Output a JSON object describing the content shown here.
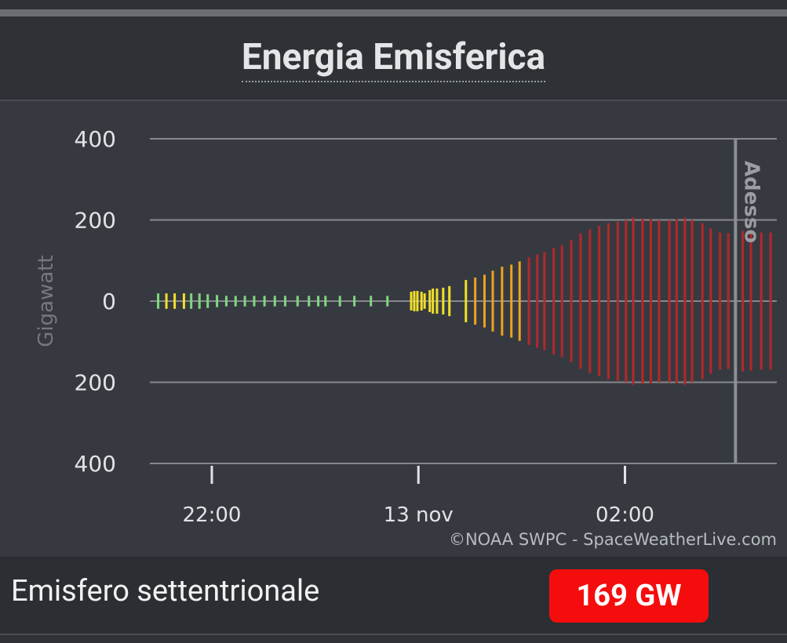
{
  "header": {
    "title": "Energia Emisferica"
  },
  "chart_data": {
    "type": "symmetric_bar",
    "y_label": "Gigawatt",
    "x": [
      -2.52,
      -2.44,
      -2.36,
      -2.27,
      -2.2,
      -2.12,
      -2.04,
      -1.95,
      -1.86,
      -1.77,
      -1.68,
      -1.59,
      -1.49,
      -1.39,
      -1.29,
      -1.17,
      -1.06,
      -0.97,
      -0.9,
      -0.76,
      -0.62,
      -0.46,
      -0.3,
      -0.07,
      -0.04,
      -0.01,
      0.03,
      0.06,
      0.11,
      0.14,
      0.18,
      0.24,
      0.3,
      0.46,
      0.55,
      0.64,
      0.72,
      0.81,
      0.9,
      0.98,
      1.07,
      1.15,
      1.22,
      1.31,
      1.39,
      1.48,
      1.57,
      1.66,
      1.75,
      1.84,
      1.93,
      2.01,
      2.08,
      2.17,
      2.25,
      2.33,
      2.43,
      2.5,
      2.58,
      2.65,
      2.75,
      2.83,
      2.92,
      3.0,
      3.14,
      3.22,
      3.32,
      3.41
    ],
    "values": [
      19,
      19,
      19,
      19,
      19,
      19,
      17,
      15,
      13,
      13,
      13,
      13,
      13,
      13,
      13,
      13,
      13,
      13,
      13,
      13,
      13,
      13,
      13,
      23,
      25,
      25,
      23,
      19,
      27,
      31,
      31,
      33,
      37,
      52,
      58,
      65,
      75,
      85,
      90,
      98,
      108,
      115,
      121,
      131,
      138,
      150,
      167,
      177,
      185,
      192,
      196,
      200,
      206,
      204,
      202,
      200,
      200,
      202,
      206,
      200,
      192,
      179,
      169,
      167,
      173,
      171,
      169,
      169
    ],
    "colors": [
      "#7fd67f",
      "#f2df2a",
      "#f2df2a",
      "#f2df2a",
      "#7fd67f",
      "#7fd67f",
      "#7fd67f",
      "#7fd67f",
      "#7fd67f",
      "#7fd67f",
      "#7fd67f",
      "#7fd67f",
      "#7fd67f",
      "#7fd67f",
      "#7fd67f",
      "#7fd67f",
      "#7fd67f",
      "#7fd67f",
      "#7fd67f",
      "#7fd67f",
      "#7fd67f",
      "#7fd67f",
      "#7fd67f",
      "#f2df2a",
      "#f2df2a",
      "#f2df2a",
      "#f2df2a",
      "#f2df2a",
      "#f2df2a",
      "#f2df2a",
      "#f2df2a",
      "#f2df2a",
      "#f2df2a",
      "#f2df2a",
      "#eea21f",
      "#eea21f",
      "#eea21f",
      "#eea21f",
      "#eea21f",
      "#eea21f",
      "#b3282a",
      "#b3282a",
      "#b3282a",
      "#b3282a",
      "#b3282a",
      "#b3282a",
      "#b3282a",
      "#b3282a",
      "#b3282a",
      "#b3282a",
      "#b3282a",
      "#b3282a",
      "#b3282a",
      "#b3282a",
      "#b3282a",
      "#b3282a",
      "#b3282a",
      "#b3282a",
      "#b3282a",
      "#b3282a",
      "#b3282a",
      "#b3282a",
      "#b3282a",
      "#b3282a",
      "#b3282a",
      "#b3282a",
      "#b3282a",
      "#b3282a"
    ],
    "xlim": [
      -2.6,
      3.47
    ],
    "xticks": [
      {
        "value": -2,
        "label": "22:00"
      },
      {
        "value": 0,
        "label": "13 nov"
      },
      {
        "value": 2,
        "label": "02:00"
      }
    ],
    "ylim": [
      -400,
      400
    ],
    "yticks": [
      {
        "value": -400,
        "label": "400"
      },
      {
        "value": -200,
        "label": "200"
      },
      0,
      200,
      400
    ],
    "grid": true,
    "now": {
      "x": 3.07,
      "label": "Adesso"
    },
    "credit": "©NOAA SWPC - SpaceWeatherLive.com"
  },
  "footer": {
    "label": "Emisfero settentrionale",
    "value": "169 GW"
  }
}
